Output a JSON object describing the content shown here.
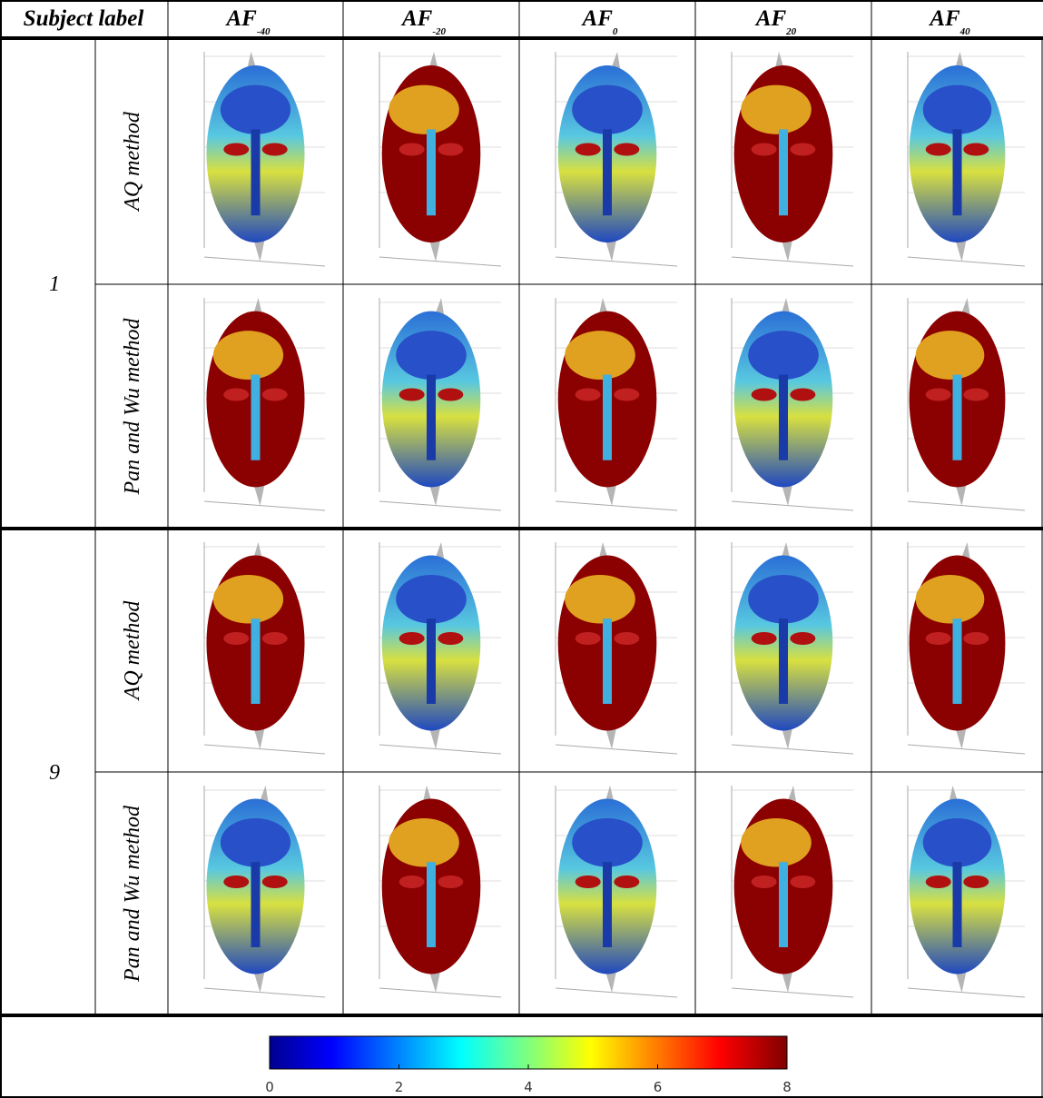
{
  "header": {
    "subject_label": "Subject label",
    "angles": [
      {
        "text": "AF",
        "sub": "-40"
      },
      {
        "text": "AF",
        "sub": "-20"
      },
      {
        "text": "AF",
        "sub": "0"
      },
      {
        "text": "AF",
        "sub": "20"
      },
      {
        "text": "AF",
        "sub": "40"
      }
    ]
  },
  "subjects": [
    {
      "label": "1",
      "methods": [
        "AQ method",
        "Pan and Wu method"
      ]
    },
    {
      "label": "9",
      "methods": [
        "AQ method",
        "Pan and Wu method"
      ]
    }
  ],
  "colorbar": {
    "lim": [
      0,
      8
    ],
    "ticks": [
      0,
      2,
      4,
      6,
      8
    ]
  }
}
